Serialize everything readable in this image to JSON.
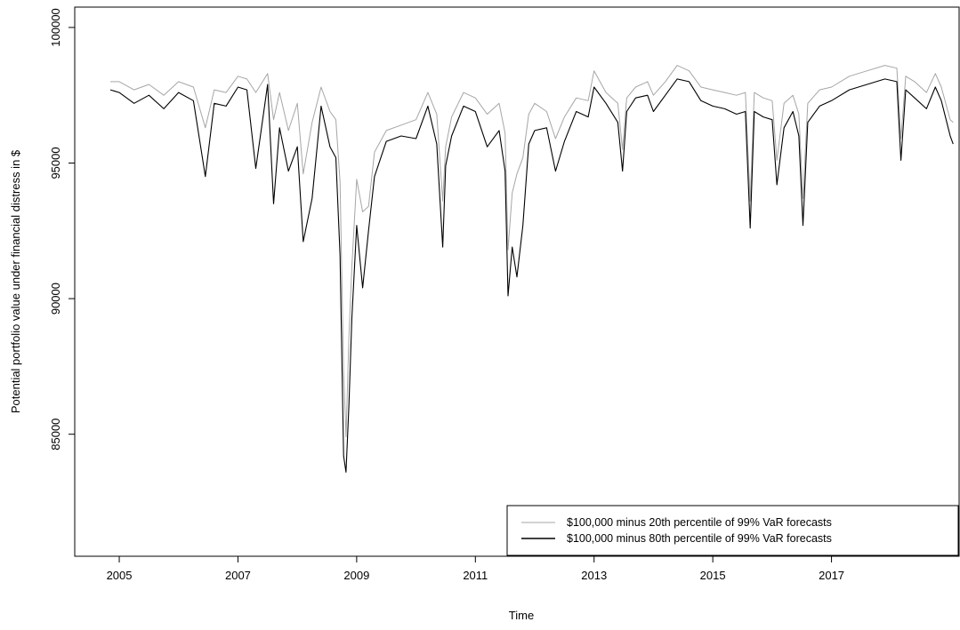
{
  "chart_data": {
    "type": "line",
    "title": "",
    "xlabel": "Time",
    "ylabel": "Potential portfolio value under financial distress in $",
    "xlim": [
      2004.25,
      2019.15
    ],
    "ylim": [
      80500,
      100750
    ],
    "x_ticks": [
      2005,
      2007,
      2009,
      2011,
      2013,
      2015,
      2017
    ],
    "x_tick_labels": [
      "2005",
      "2007",
      "2009",
      "2011",
      "2013",
      "2015",
      "2017"
    ],
    "y_ticks": [
      85000,
      90000,
      95000,
      100000
    ],
    "y_tick_labels": [
      "85000",
      "90000",
      "95000",
      "100000"
    ],
    "grid": false,
    "legend_position": "bottom-right",
    "series": [
      {
        "name": "$100,000 minus 20th percentile of 99% VaR forecasts",
        "color": "#a6a6a6",
        "style": "solid",
        "x": [
          2004.85,
          2005.0,
          2005.25,
          2005.5,
          2005.75,
          2006.0,
          2006.25,
          2006.45,
          2006.6,
          2006.8,
          2007.0,
          2007.15,
          2007.3,
          2007.5,
          2007.6,
          2007.7,
          2007.85,
          2008.0,
          2008.1,
          2008.25,
          2008.4,
          2008.55,
          2008.65,
          2008.72,
          2008.78,
          2008.82,
          2008.87,
          2008.92,
          2009.0,
          2009.1,
          2009.2,
          2009.3,
          2009.5,
          2009.75,
          2010.0,
          2010.2,
          2010.35,
          2010.45,
          2010.5,
          2010.6,
          2010.8,
          2011.0,
          2011.2,
          2011.4,
          2011.5,
          2011.55,
          2011.62,
          2011.7,
          2011.8,
          2011.9,
          2012.0,
          2012.2,
          2012.35,
          2012.5,
          2012.7,
          2012.9,
          2013.0,
          2013.2,
          2013.4,
          2013.48,
          2013.55,
          2013.7,
          2013.9,
          2014.0,
          2014.2,
          2014.4,
          2014.6,
          2014.8,
          2015.0,
          2015.2,
          2015.4,
          2015.55,
          2015.63,
          2015.7,
          2015.85,
          2016.0,
          2016.08,
          2016.2,
          2016.35,
          2016.45,
          2016.52,
          2016.6,
          2016.8,
          2017.0,
          2017.3,
          2017.6,
          2017.9,
          2018.1,
          2018.17,
          2018.25,
          2018.4,
          2018.6,
          2018.75,
          2018.85,
          2019.0,
          2019.05
        ],
        "values": [
          98000,
          98000,
          97700,
          97900,
          97500,
          98000,
          97800,
          96300,
          97700,
          97600,
          98200,
          98100,
          97600,
          98300,
          96600,
          97600,
          96200,
          97200,
          94600,
          96500,
          97800,
          96900,
          96600,
          94300,
          87300,
          84900,
          88600,
          91200,
          94400,
          93200,
          93400,
          95400,
          96200,
          96400,
          96600,
          97600,
          96800,
          93600,
          95600,
          96700,
          97600,
          97400,
          96800,
          97200,
          96100,
          91800,
          93900,
          94600,
          95200,
          96800,
          97200,
          96900,
          95900,
          96700,
          97400,
          97300,
          98400,
          97600,
          97200,
          95500,
          97400,
          97800,
          98000,
          97500,
          98000,
          98600,
          98400,
          97800,
          97700,
          97600,
          97500,
          97600,
          93600,
          97600,
          97400,
          97300,
          95100,
          97200,
          97500,
          96800,
          93700,
          97200,
          97700,
          97800,
          98200,
          98400,
          98600,
          98500,
          95900,
          98200,
          98000,
          97600,
          98300,
          97800,
          96600,
          96500
        ]
      },
      {
        "name": "$100,000 minus 80th percentile of 99% VaR forecasts",
        "color": "#000000",
        "style": "solid",
        "x": [
          2004.85,
          2005.0,
          2005.25,
          2005.5,
          2005.75,
          2006.0,
          2006.25,
          2006.45,
          2006.6,
          2006.8,
          2007.0,
          2007.15,
          2007.3,
          2007.5,
          2007.6,
          2007.7,
          2007.85,
          2008.0,
          2008.1,
          2008.25,
          2008.4,
          2008.55,
          2008.65,
          2008.72,
          2008.78,
          2008.82,
          2008.87,
          2008.92,
          2009.0,
          2009.1,
          2009.2,
          2009.3,
          2009.5,
          2009.75,
          2010.0,
          2010.2,
          2010.35,
          2010.45,
          2010.5,
          2010.6,
          2010.8,
          2011.0,
          2011.2,
          2011.4,
          2011.5,
          2011.55,
          2011.62,
          2011.7,
          2011.8,
          2011.9,
          2012.0,
          2012.2,
          2012.35,
          2012.5,
          2012.7,
          2012.9,
          2013.0,
          2013.2,
          2013.4,
          2013.48,
          2013.55,
          2013.7,
          2013.9,
          2014.0,
          2014.2,
          2014.4,
          2014.6,
          2014.8,
          2015.0,
          2015.2,
          2015.4,
          2015.55,
          2015.63,
          2015.7,
          2015.85,
          2016.0,
          2016.08,
          2016.2,
          2016.35,
          2016.45,
          2016.52,
          2016.6,
          2016.8,
          2017.0,
          2017.3,
          2017.6,
          2017.9,
          2018.1,
          2018.17,
          2018.25,
          2018.4,
          2018.6,
          2018.75,
          2018.85,
          2019.0,
          2019.05
        ],
        "values": [
          97700,
          97600,
          97200,
          97500,
          97000,
          97600,
          97300,
          94500,
          97200,
          97100,
          97800,
          97700,
          94800,
          97900,
          93500,
          96300,
          94700,
          95600,
          92100,
          93700,
          97100,
          95600,
          95200,
          91600,
          84200,
          83600,
          86100,
          89300,
          92700,
          90400,
          92500,
          94500,
          95800,
          96000,
          95900,
          97100,
          95700,
          91900,
          94900,
          96000,
          97100,
          96900,
          95600,
          96200,
          94700,
          90100,
          91900,
          90800,
          92700,
          95700,
          96200,
          96300,
          94700,
          95800,
          96900,
          96700,
          97800,
          97200,
          96500,
          94700,
          96900,
          97400,
          97500,
          96900,
          97500,
          98100,
          98000,
          97300,
          97100,
          97000,
          96800,
          96900,
          92600,
          96900,
          96700,
          96600,
          94200,
          96300,
          96900,
          96000,
          92700,
          96500,
          97100,
          97300,
          97700,
          97900,
          98100,
          98000,
          95100,
          97700,
          97400,
          97000,
          97800,
          97300,
          96000,
          95700
        ]
      }
    ],
    "legend": {
      "entries": [
        "$100,000 minus 20th percentile of 99% VaR forecasts",
        "$100,000 minus 80th percentile of 99% VaR forecasts"
      ]
    }
  }
}
